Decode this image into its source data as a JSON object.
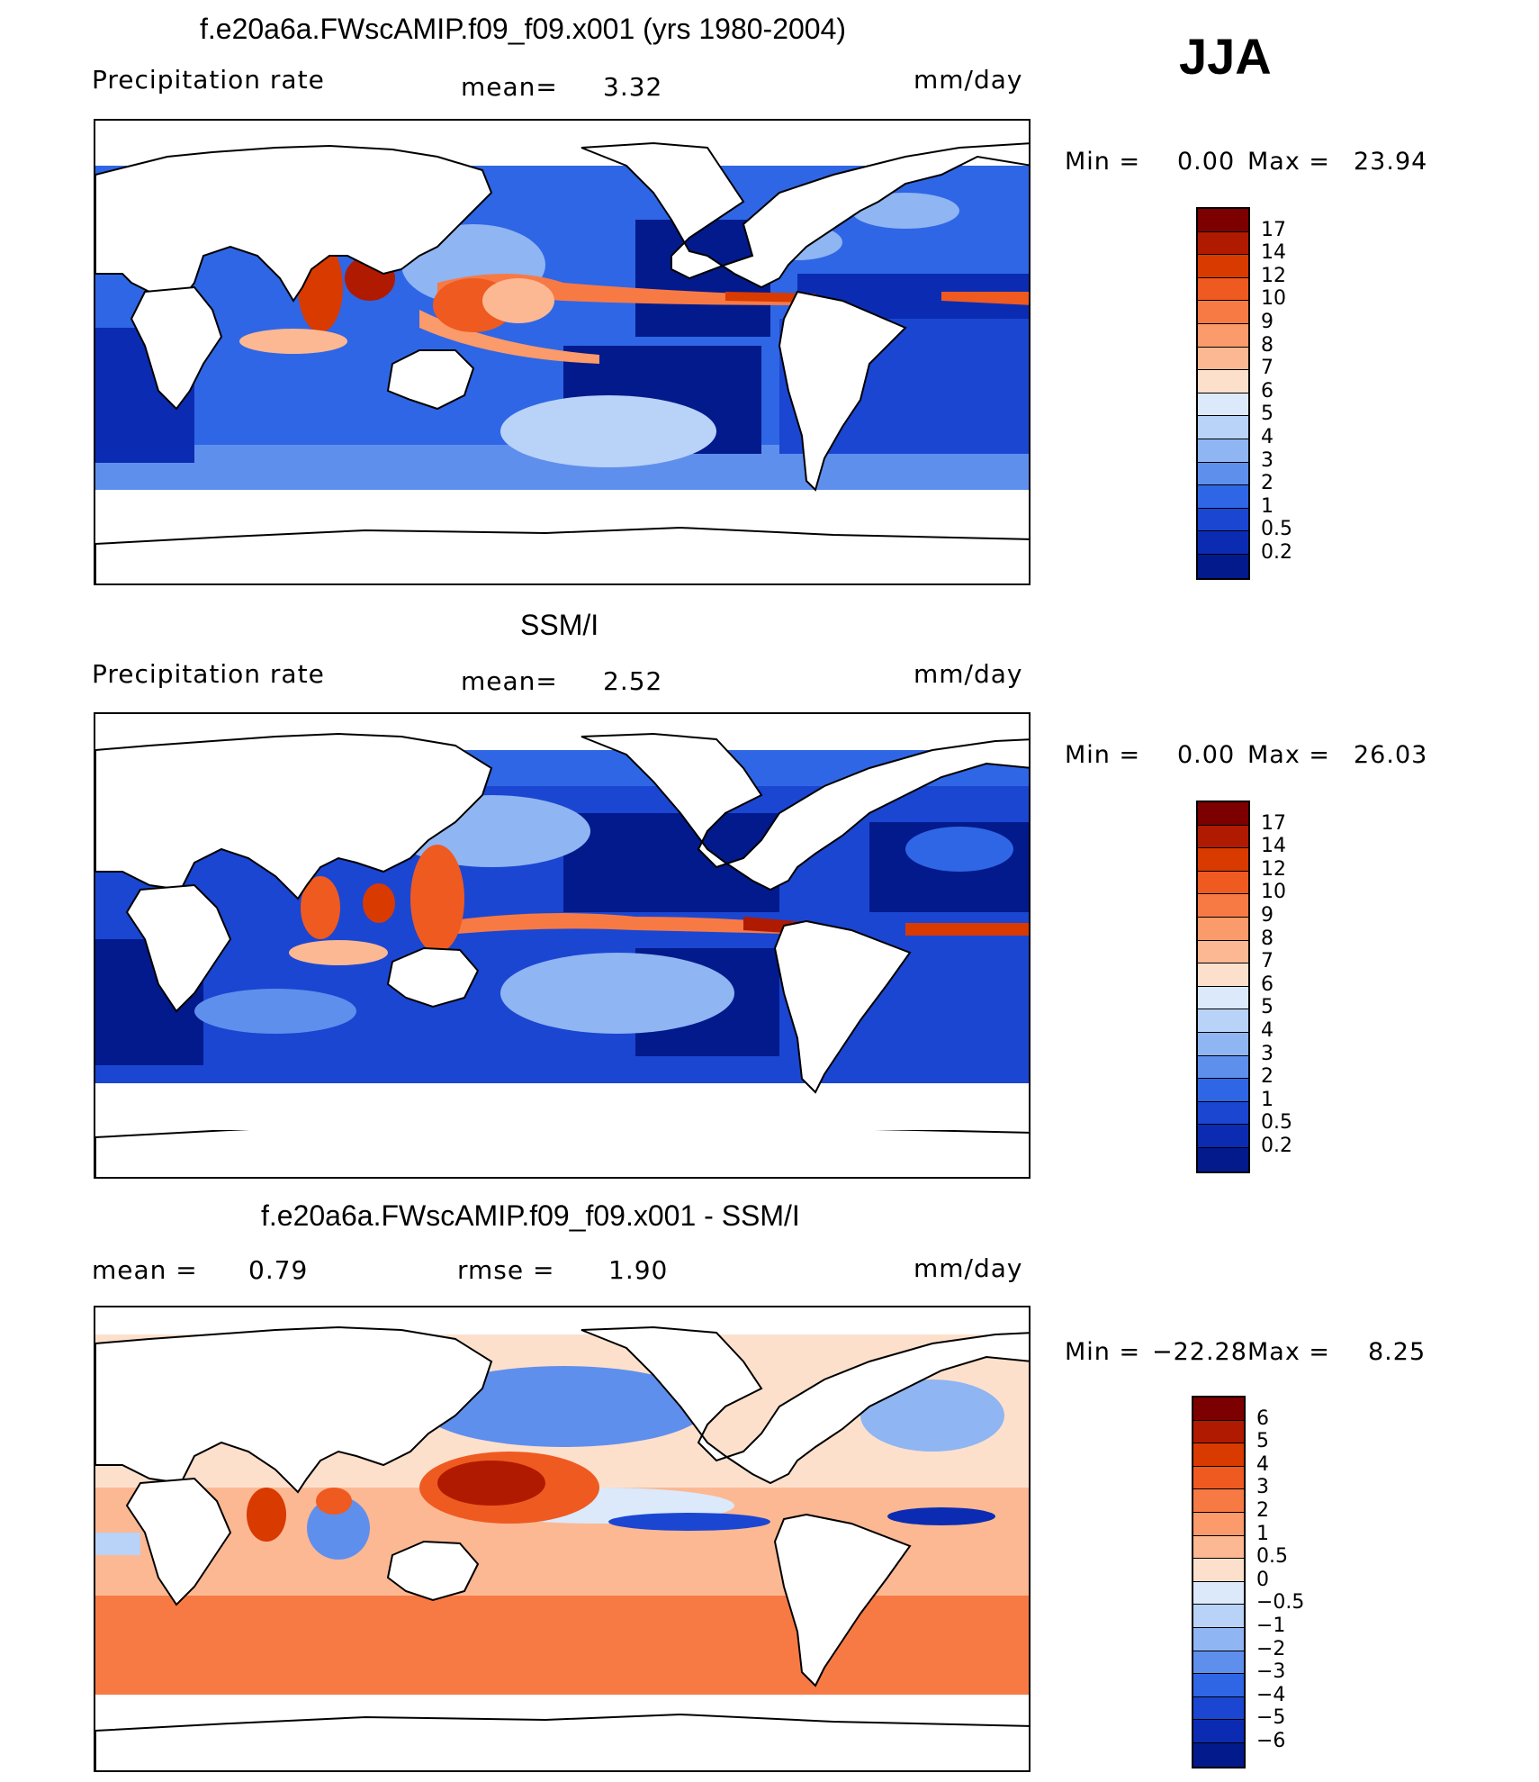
{
  "season": "JJA",
  "panels": [
    {
      "title": "f.e20a6a.FWscAMIP.f09_f09.x001 (yrs 1980-2004)",
      "variable": "Precipitation rate",
      "mean_label": "mean=",
      "mean_value": "3.32",
      "units": "mm/day",
      "min_label": "Min =",
      "min_value": "0.00",
      "max_label": "Max =",
      "max_value": "23.94",
      "colorbar": {
        "labels": [
          "17",
          "14",
          "12",
          "10",
          "9",
          "8",
          "7",
          "6",
          "5",
          "4",
          "3",
          "2",
          "1",
          "0.5",
          "0.2"
        ],
        "colors": [
          "#7d0000",
          "#b01a00",
          "#d83a00",
          "#ef5a20",
          "#f77a45",
          "#fb9a6a",
          "#fcb893",
          "#fde0cc",
          "#dbe9fa",
          "#b9d2f7",
          "#8fb5f2",
          "#5f8fec",
          "#2f66e5",
          "#1b46d2",
          "#0b2cb2",
          "#031a8c"
        ]
      }
    },
    {
      "title": "SSM/I",
      "variable": "Precipitation rate",
      "mean_label": "mean=",
      "mean_value": "2.52",
      "units": "mm/day",
      "min_label": "Min =",
      "min_value": "0.00",
      "max_label": "Max =",
      "max_value": "26.03",
      "colorbar": {
        "labels": [
          "17",
          "14",
          "12",
          "10",
          "9",
          "8",
          "7",
          "6",
          "5",
          "4",
          "3",
          "2",
          "1",
          "0.5",
          "0.2"
        ],
        "colors": [
          "#7d0000",
          "#b01a00",
          "#d83a00",
          "#ef5a20",
          "#f77a45",
          "#fb9a6a",
          "#fcb893",
          "#fde0cc",
          "#dbe9fa",
          "#b9d2f7",
          "#8fb5f2",
          "#5f8fec",
          "#2f66e5",
          "#1b46d2",
          "#0b2cb2",
          "#031a8c"
        ]
      }
    },
    {
      "title": "f.e20a6a.FWscAMIP.f09_f09.x001 - SSM/I",
      "mean_label": "mean =",
      "mean_value": "0.79",
      "rmse_label": "rmse =",
      "rmse_value": "1.90",
      "units": "mm/day",
      "min_label": "Min =",
      "min_value": "−22.28",
      "max_label": "Max =",
      "max_value": "8.25",
      "colorbar": {
        "labels": [
          "6",
          "5",
          "4",
          "3",
          "2",
          "1",
          "0.5",
          "0",
          "−0.5",
          "−1",
          "−2",
          "−3",
          "−4",
          "−5",
          "−6"
        ],
        "colors": [
          "#7d0000",
          "#b01a00",
          "#d83a00",
          "#ef5a20",
          "#f77a45",
          "#fb9a6a",
          "#fcb893",
          "#fde0cc",
          "#dbe9fa",
          "#b9d2f7",
          "#8fb5f2",
          "#5f8fec",
          "#2f66e5",
          "#1b46d2",
          "#0b2cb2",
          "#031a8c"
        ]
      }
    }
  ]
}
